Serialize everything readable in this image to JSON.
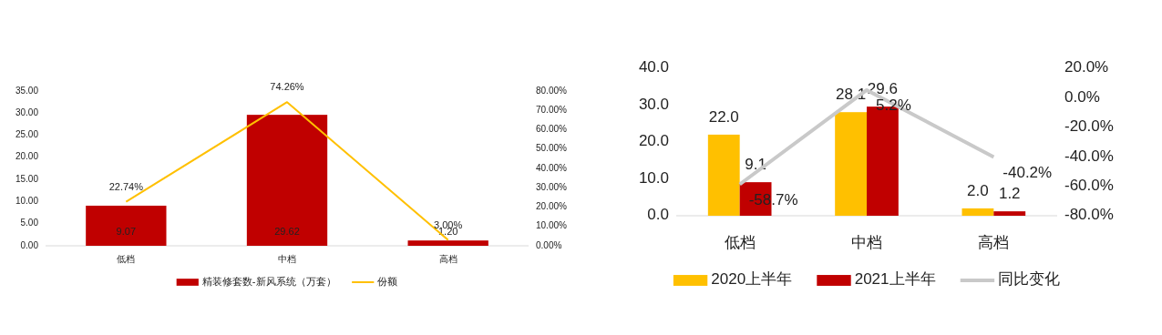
{
  "chart_data": [
    {
      "type": "bar",
      "categories": [
        "低档",
        "中档",
        "高档"
      ],
      "series": [
        {
          "name": "精装修套数-新风系统（万套）",
          "color": "#c00000",
          "values": [
            9.07,
            29.62,
            1.2
          ],
          "value_labels": [
            "9.07",
            "29.62",
            "1.20"
          ]
        },
        {
          "name": "份额",
          "type": "line",
          "axis": "y2",
          "color": "#ffc000",
          "values": [
            22.74,
            74.26,
            3.0
          ],
          "value_labels": [
            "22.74%",
            "74.26%",
            "3.00%"
          ]
        }
      ],
      "ylim": [
        0,
        35
      ],
      "yticks": [
        {
          "value": 0,
          "label": "0.00"
        },
        {
          "value": 5,
          "label": "5.00"
        },
        {
          "value": 10,
          "label": "10.00"
        },
        {
          "value": 15,
          "label": "15.00"
        },
        {
          "value": 20,
          "label": "20.00"
        },
        {
          "value": 25,
          "label": "25.00"
        },
        {
          "value": 30,
          "label": "30.00"
        },
        {
          "value": 35,
          "label": "35.00"
        }
      ],
      "y2lim": [
        0,
        80
      ],
      "y2ticks": [
        {
          "value": 0,
          "label": "0.00%"
        },
        {
          "value": 10,
          "label": "10.00%"
        },
        {
          "value": 20,
          "label": "20.00%"
        },
        {
          "value": 30,
          "label": "30.00%"
        },
        {
          "value": 40,
          "label": "40.00%"
        },
        {
          "value": 50,
          "label": "50.00%"
        },
        {
          "value": 60,
          "label": "60.00%"
        },
        {
          "value": 70,
          "label": "70.00%"
        },
        {
          "value": 80,
          "label": "80.00%"
        }
      ],
      "legend": "bottom",
      "grid": false
    },
    {
      "type": "bar",
      "categories": [
        "低档",
        "中档",
        "高档"
      ],
      "series": [
        {
          "name": "2020上半年",
          "color": "#ffc000",
          "values": [
            22.0,
            28.1,
            2.0
          ],
          "value_labels": [
            "22.0",
            "28.1",
            "2.0"
          ]
        },
        {
          "name": "2021上半年",
          "color": "#c00000",
          "values": [
            9.1,
            29.6,
            1.2
          ],
          "value_labels": [
            "9.1",
            "29.6",
            "1.2"
          ]
        },
        {
          "name": "同比变化",
          "type": "line",
          "axis": "y2",
          "color": "#c9c9c9",
          "values": [
            -58.7,
            5.2,
            -40.2
          ],
          "value_labels": [
            "-58.7%",
            "5.2%",
            "-40.2%"
          ]
        }
      ],
      "ylim": [
        0,
        40
      ],
      "yticks": [
        {
          "value": 0,
          "label": "0.0"
        },
        {
          "value": 10,
          "label": "10.0"
        },
        {
          "value": 20,
          "label": "20.0"
        },
        {
          "value": 30,
          "label": "30.0"
        },
        {
          "value": 40,
          "label": "40.0"
        }
      ],
      "y2lim": [
        -80,
        20
      ],
      "y2ticks": [
        {
          "value": -80,
          "label": "-80.0%"
        },
        {
          "value": -60,
          "label": "-60.0%"
        },
        {
          "value": -40,
          "label": "-40.0%"
        },
        {
          "value": -20,
          "label": "-20.0%"
        },
        {
          "value": 0,
          "label": "0.0%"
        },
        {
          "value": 20,
          "label": "20.0%"
        }
      ],
      "legend": "bottom",
      "grid": false
    }
  ]
}
